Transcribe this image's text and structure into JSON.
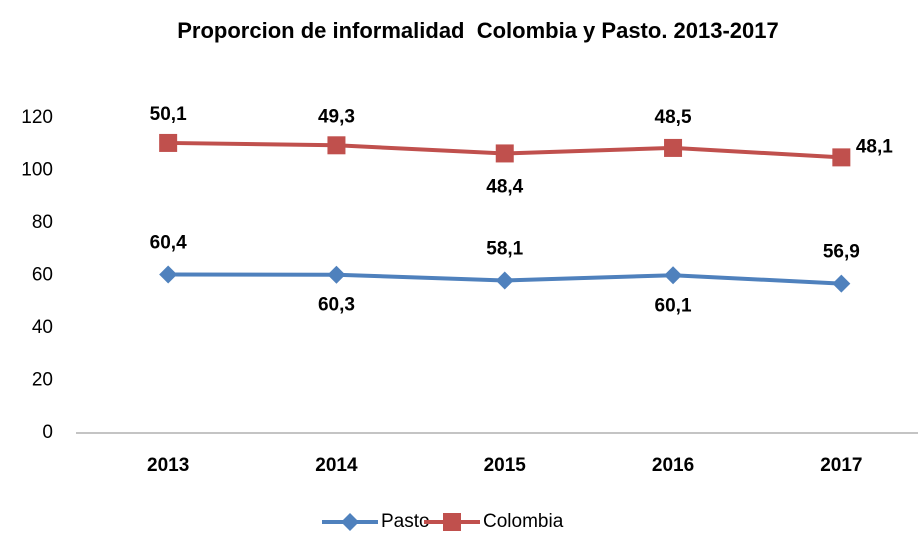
{
  "chart_data": {
    "type": "line",
    "stacked": true,
    "title": "Proporcion de informalidad  Colombia y Pasto. 2013-2017",
    "categories": [
      "2013",
      "2014",
      "2015",
      "2016",
      "2017"
    ],
    "series": [
      {
        "name": "Pasto",
        "color": "#4f81bd",
        "marker": "diamond",
        "values": [
          60.4,
          60.3,
          58.1,
          60.1,
          56.9
        ],
        "value_labels": [
          "60,4",
          "60,3",
          "58,1",
          "60,1",
          "56,9"
        ]
      },
      {
        "name": "Colombia",
        "color": "#c0504d",
        "marker": "square",
        "values": [
          50.1,
          49.3,
          48.4,
          48.5,
          48.1
        ],
        "value_labels": [
          "50,1",
          "49,3",
          "48,4",
          "48,5",
          "48,1"
        ]
      }
    ],
    "ylim": [
      0,
      120
    ],
    "yticks": [
      0,
      20,
      40,
      60,
      80,
      100,
      120
    ],
    "grid": false,
    "legend": "bottom"
  }
}
